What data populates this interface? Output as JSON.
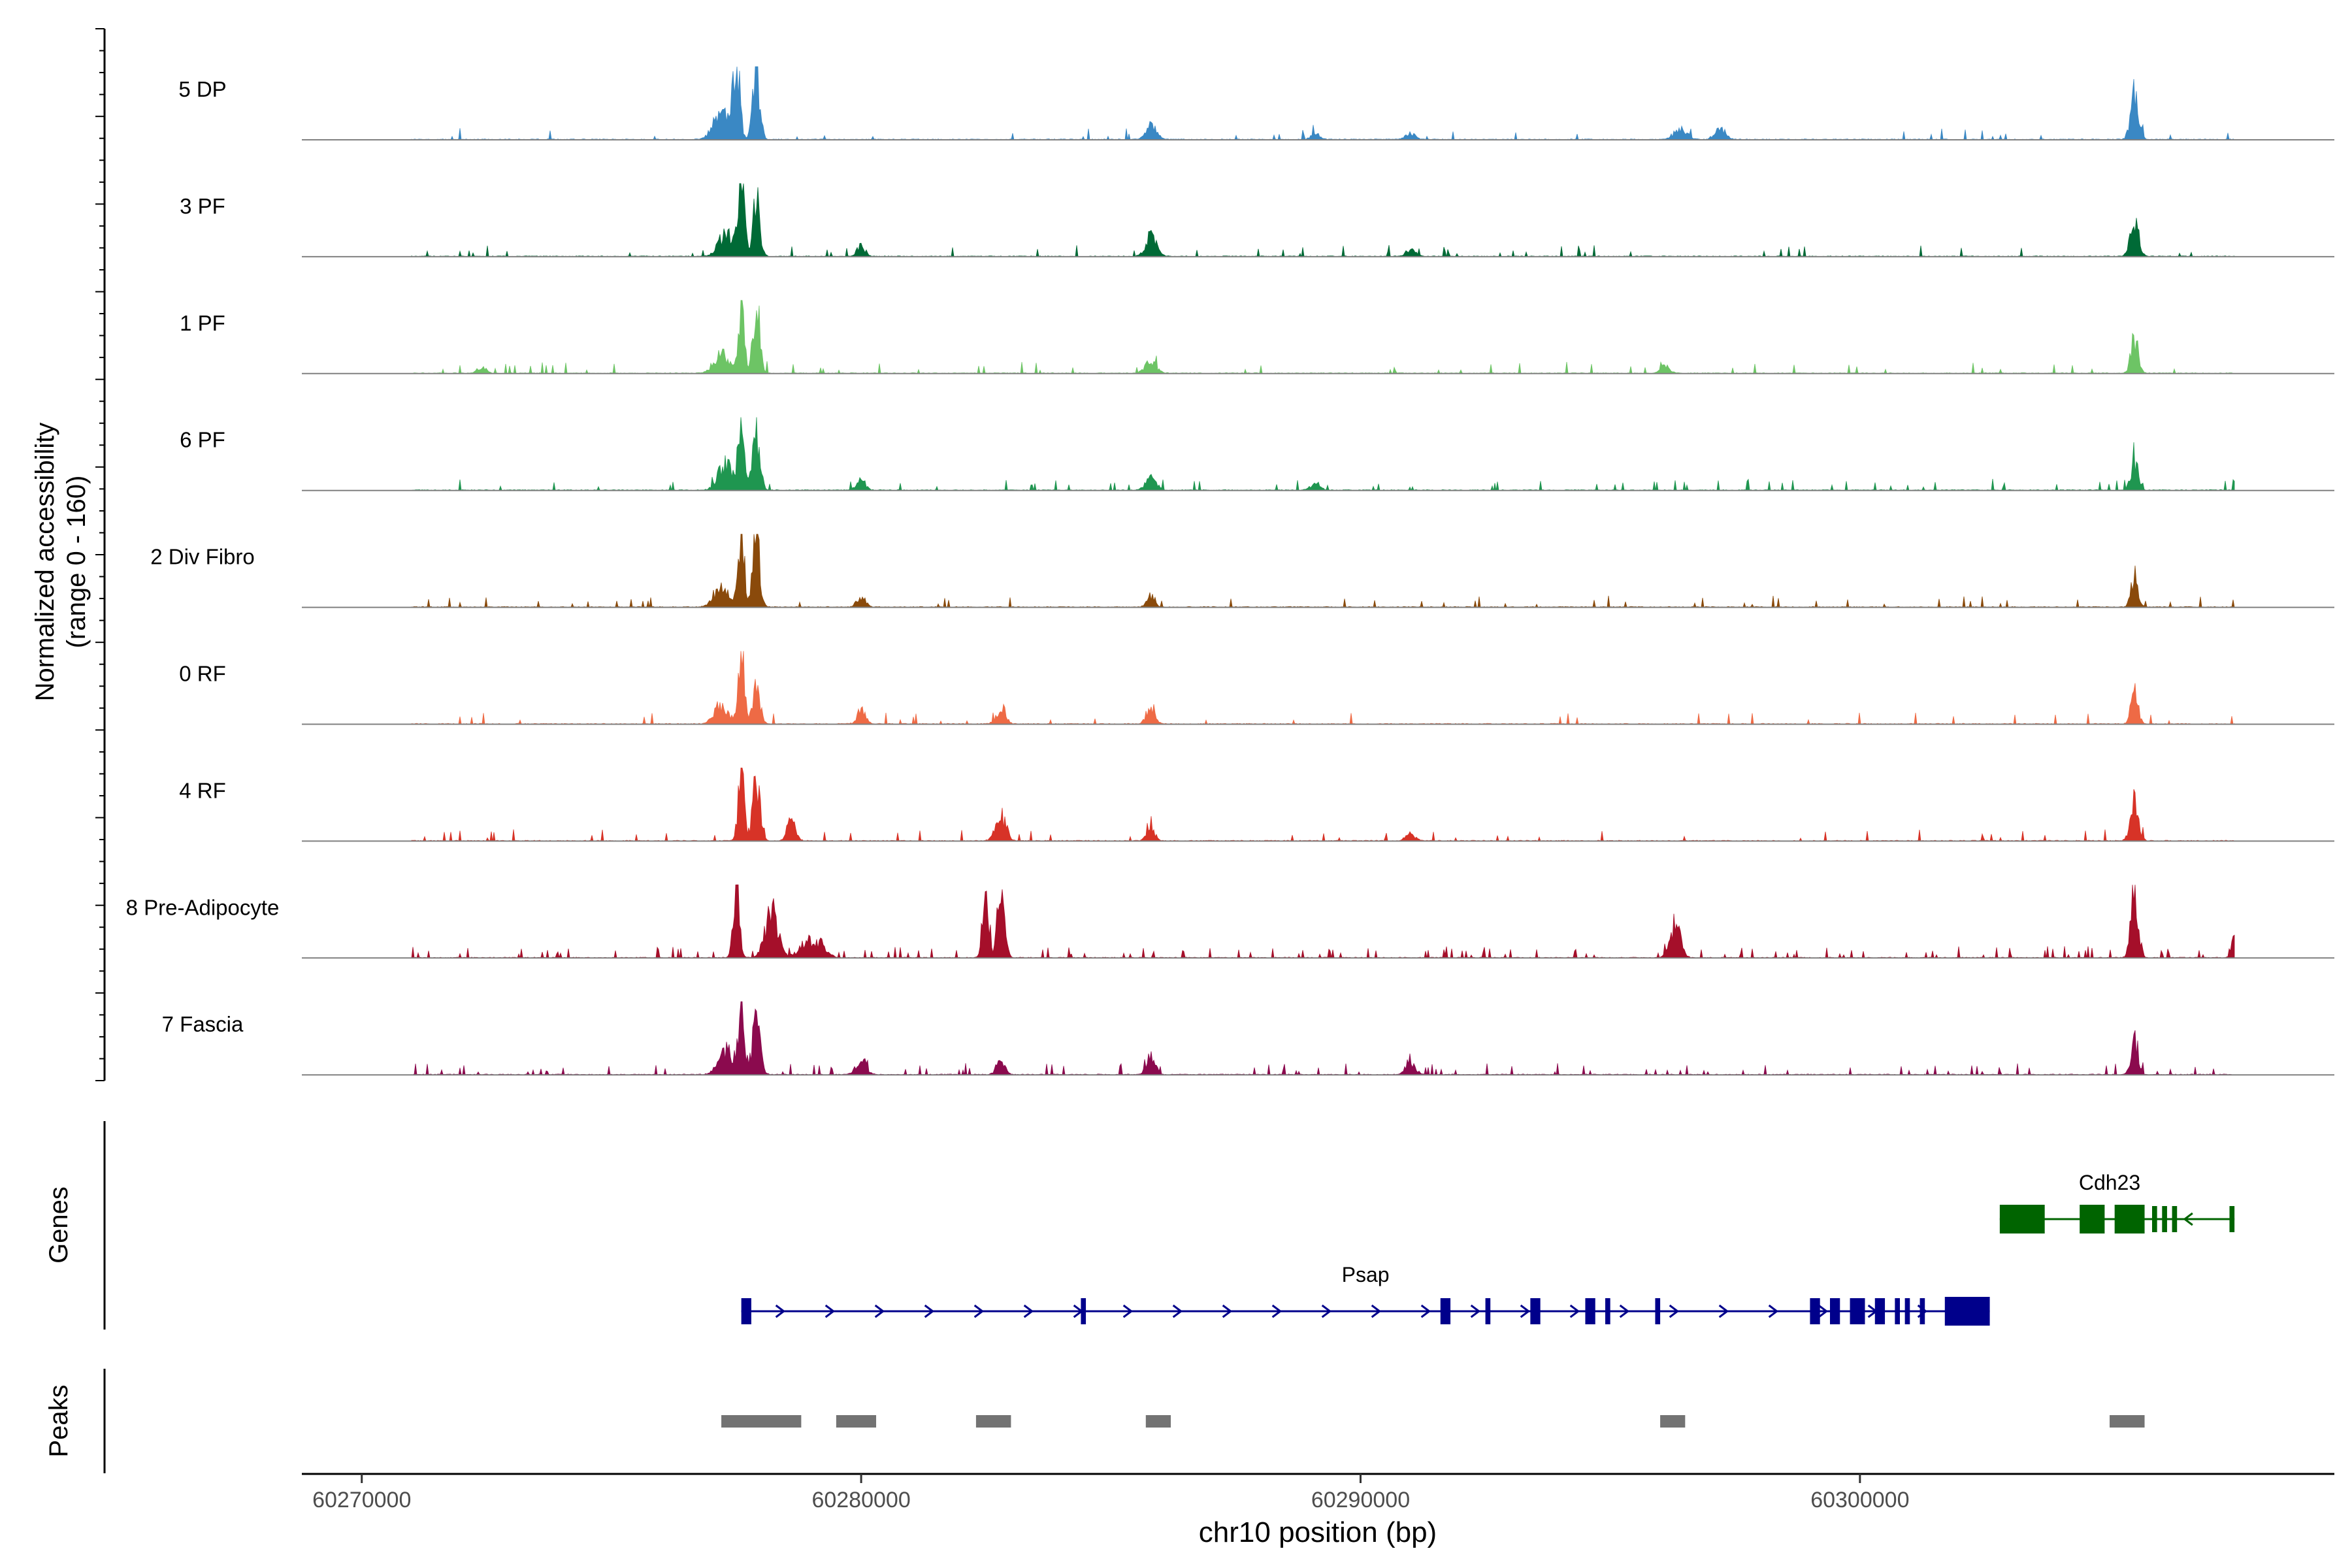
{
  "chart_data": {
    "type": "area",
    "title": "",
    "xlabel": "chr10 position (bp)",
    "ylabel": "Normalized accessibility",
    "ylabel_range": "(range 0 - 160)",
    "y_range": [
      0,
      160
    ],
    "x_range": [
      60268800,
      60309500
    ],
    "x_ticks": [
      60270000,
      60280000,
      60290000,
      60300000
    ],
    "x_tick_labels": [
      "60270000",
      "60280000",
      "60290000",
      "60300000"
    ],
    "track_extent": [
      60271000,
      60307500
    ],
    "tracks": [
      {
        "name": "5 DP",
        "color": "#3a88c4",
        "noise": 0.035,
        "peaks": [
          [
            60277500,
            160,
            70
          ],
          [
            60277900,
            150,
            70
          ],
          [
            60277200,
            60,
            150
          ],
          [
            60285800,
            35,
            100
          ],
          [
            60289100,
            15,
            80
          ],
          [
            60291000,
            15,
            90
          ],
          [
            60296400,
            25,
            120
          ],
          [
            60297200,
            30,
            100
          ],
          [
            60305500,
            95,
            80
          ]
        ]
      },
      {
        "name": "3 PF",
        "color": "#006a36",
        "noise": 0.035,
        "peaks": [
          [
            60277600,
            160,
            60
          ],
          [
            60277900,
            140,
            70
          ],
          [
            60277300,
            50,
            150
          ],
          [
            60280000,
            25,
            80
          ],
          [
            60285800,
            40,
            110
          ],
          [
            60291000,
            15,
            90
          ],
          [
            60305500,
            80,
            80
          ]
        ]
      },
      {
        "name": "1 PF",
        "color": "#6dc465",
        "noise": 0.035,
        "peaks": [
          [
            60277600,
            160,
            60
          ],
          [
            60277900,
            145,
            70
          ],
          [
            60277200,
            40,
            150
          ],
          [
            60272400,
            15,
            80
          ],
          [
            60285800,
            25,
            110
          ],
          [
            60296100,
            15,
            90
          ],
          [
            60305500,
            75,
            70
          ]
        ]
      },
      {
        "name": "6 PF",
        "color": "#1f9650",
        "noise": 0.04,
        "peaks": [
          [
            60277600,
            145,
            60
          ],
          [
            60277900,
            140,
            70
          ],
          [
            60277300,
            60,
            150
          ],
          [
            60280000,
            20,
            90
          ],
          [
            60285800,
            30,
            100
          ],
          [
            60289100,
            15,
            90
          ],
          [
            60305500,
            70,
            70
          ]
        ]
      },
      {
        "name": "2 Div Fibro",
        "color": "#8a4a0b",
        "noise": 0.035,
        "peaks": [
          [
            60277600,
            160,
            60
          ],
          [
            60277900,
            150,
            70
          ],
          [
            60277200,
            50,
            140
          ],
          [
            60280000,
            20,
            90
          ],
          [
            60285800,
            25,
            80
          ],
          [
            60305500,
            65,
            70
          ]
        ]
      },
      {
        "name": "0 RF",
        "color": "#ee6a45",
        "noise": 0.035,
        "peaks": [
          [
            60277600,
            155,
            60
          ],
          [
            60277900,
            100,
            70
          ],
          [
            60277200,
            40,
            140
          ],
          [
            60280000,
            30,
            80
          ],
          [
            60282800,
            35,
            90
          ],
          [
            60285800,
            40,
            80
          ],
          [
            60305500,
            65,
            70
          ]
        ]
      },
      {
        "name": "4 RF",
        "color": "#d73327",
        "noise": 0.04,
        "peaks": [
          [
            60277600,
            160,
            60
          ],
          [
            60277900,
            130,
            70
          ],
          [
            60278600,
            50,
            80
          ],
          [
            60282800,
            55,
            100
          ],
          [
            60285800,
            25,
            80
          ],
          [
            60291000,
            15,
            90
          ],
          [
            60305500,
            80,
            80
          ]
        ]
      },
      {
        "name": "8 Pre-Adipocyte",
        "color": "#a50f2a",
        "noise": 0.09,
        "peaks": [
          [
            60277500,
            160,
            60
          ],
          [
            60278200,
            110,
            120
          ],
          [
            60279000,
            40,
            200
          ],
          [
            60282500,
            140,
            60
          ],
          [
            60282800,
            145,
            70
          ],
          [
            60296300,
            75,
            100
          ],
          [
            60305500,
            150,
            70
          ],
          [
            60307500,
            40,
            60
          ]
        ]
      },
      {
        "name": "7 Fascia",
        "color": "#8b0a4e",
        "noise": 0.05,
        "peaks": [
          [
            60277600,
            160,
            60
          ],
          [
            60277900,
            110,
            80
          ],
          [
            60277300,
            50,
            150
          ],
          [
            60280000,
            40,
            90
          ],
          [
            60282800,
            35,
            80
          ],
          [
            60285800,
            50,
            80
          ],
          [
            60291000,
            30,
            90
          ],
          [
            60305500,
            80,
            70
          ]
        ]
      }
    ],
    "genes": [
      {
        "name": "Cdh23",
        "color": "#006400",
        "strand": "-",
        "start": 60302800,
        "end": 60307500,
        "exons": [
          [
            60302800,
            60303700
          ],
          [
            60304400,
            60304900
          ],
          [
            60305100,
            60305700
          ],
          [
            60305850,
            60305950
          ],
          [
            60306050,
            60306150
          ],
          [
            60306250,
            60306350
          ],
          [
            60307400,
            60307500
          ]
        ]
      },
      {
        "name": "Psap",
        "color": "#00008b",
        "strand": "+",
        "start": 60277600,
        "end": 60302600,
        "exons": [
          [
            60277600,
            60277800
          ],
          [
            60284400,
            60284500
          ],
          [
            60291600,
            60291800
          ],
          [
            60292500,
            60292600
          ],
          [
            60293400,
            60293600
          ],
          [
            60294500,
            60294700
          ],
          [
            60294900,
            60295000
          ],
          [
            60295900,
            60296000
          ],
          [
            60299000,
            60299200
          ],
          [
            60299400,
            60299600
          ],
          [
            60299800,
            60300100
          ],
          [
            60300300,
            60300500
          ],
          [
            60300700,
            60300800
          ],
          [
            60300900,
            60301000
          ],
          [
            60301200,
            60301300
          ],
          [
            60301700,
            60302600
          ]
        ]
      }
    ],
    "peaks_track": [
      [
        60277200,
        60278800
      ],
      [
        60279500,
        60280300
      ],
      [
        60282300,
        60283000
      ],
      [
        60285700,
        60286200
      ],
      [
        60296000,
        60296500
      ],
      [
        60305000,
        60305700
      ]
    ],
    "panel_labels": [
      "Genes",
      "Peaks"
    ]
  }
}
